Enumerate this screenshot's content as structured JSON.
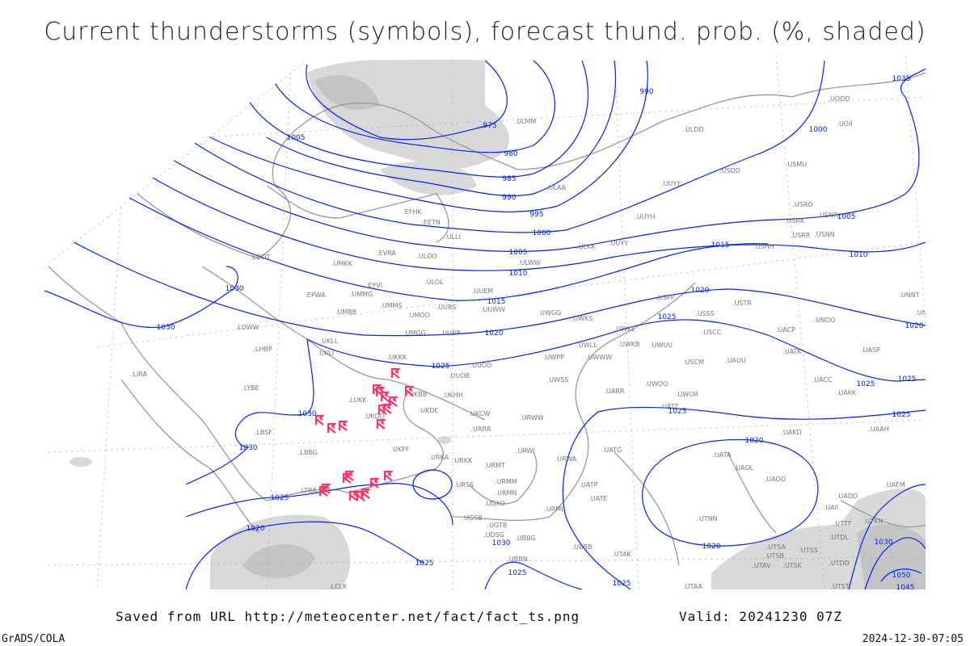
{
  "title": "Current thunderstorms (symbols), forecast thund. prob. (%, shaded)",
  "footer": {
    "saved_from": "Saved from URL http://meteocenter.net/fact/fact_ts.png",
    "valid": "Valid: 20241230 07Z",
    "software": "GrADS/COLA",
    "timestamp": "2024-12-30-07:05"
  },
  "colors": {
    "isobar": "#0022ff",
    "thunderstorm_symbol": "#ff3366",
    "shading": "#d0d0d0",
    "coastline": "#999999",
    "station_label": "#777777"
  },
  "thunderstorm_symbol_icon": "thunderstorm-icon",
  "isobar_labels": [
    "975",
    "980",
    "985",
    "990",
    "995",
    "1000",
    "1000",
    "1005",
    "1005",
    "1005",
    "1010",
    "1010",
    "1015",
    "1015",
    "1020",
    "1020",
    "1020",
    "1025",
    "1025",
    "1025",
    "1025",
    "1025",
    "1025",
    "1020",
    "1020",
    "1030",
    "1030",
    "1030",
    "1030",
    "1025",
    "1020",
    "1025",
    "1030",
    "1025",
    "1035",
    "990",
    "1025",
    "1030",
    "1050",
    "1045"
  ],
  "stations": [
    "ULMM",
    "ULDD",
    "UODD",
    "UOII",
    "USMU",
    "USDD",
    "UUYY",
    "ULAA",
    "USRO",
    "USRK",
    "USNR",
    "USRR",
    "USNN",
    "UUYH",
    "ULKK",
    "UUYY",
    "USHH",
    "EETN",
    "EFHK",
    "ULLI",
    "ULOO",
    "EVRA",
    "UMKK",
    "EDDT",
    "ULWW",
    "ULOL",
    "UUEM",
    "EYVI",
    "UMMG",
    "EPWA",
    "UMMS",
    "UMOO",
    "UUBS",
    "UUWW",
    "UWGG",
    "USPP",
    "UNNT",
    "UNBB",
    "USSS",
    "USTR",
    "UNOO",
    "UWKS",
    "UWKE",
    "UACP",
    "UMBB",
    "USCC",
    "UKLL",
    "UKLI",
    "LHBP",
    "LOWW",
    "UMGG",
    "UUBP",
    "UWLL",
    "UWKB",
    "UWUU",
    "UATK",
    "UASP",
    "UWWW",
    "UWPP",
    "USCM",
    "UAUU",
    "UKKK",
    "UUOO",
    "UUOB",
    "LIRA",
    "UWSS",
    "UWOO",
    "UACC",
    "UAKK",
    "UKHH",
    "UARR",
    "UWOR",
    "UATT",
    "UKDE",
    "LYBE",
    "UKCW",
    "URWW",
    "URRR",
    "UAKD",
    "UAAH",
    "LBSF",
    "LUKK",
    "UKOO",
    "UKFF",
    "URWI",
    "UATG",
    "UATA",
    "LBBG",
    "UAOL",
    "URKA",
    "URKK",
    "URMT",
    "URWA",
    "UAOO",
    "URMM",
    "URSS",
    "UAFM",
    "UATE",
    "UATP",
    "URMN",
    "LTBA",
    "UGSB",
    "UGKO",
    "URML",
    "UTTT",
    "UTKN",
    "UAII",
    "UADD",
    "UGTB",
    "UTNN",
    "UDSG",
    "UBBG",
    "UBBB",
    "UTDL",
    "UBBN",
    "UTSA",
    "UTSB",
    "UTSS",
    "UTAK",
    "UTDD",
    "UTAV",
    "UTSK",
    "UTST",
    "UTAA",
    "LCLK",
    "UKBB"
  ]
}
